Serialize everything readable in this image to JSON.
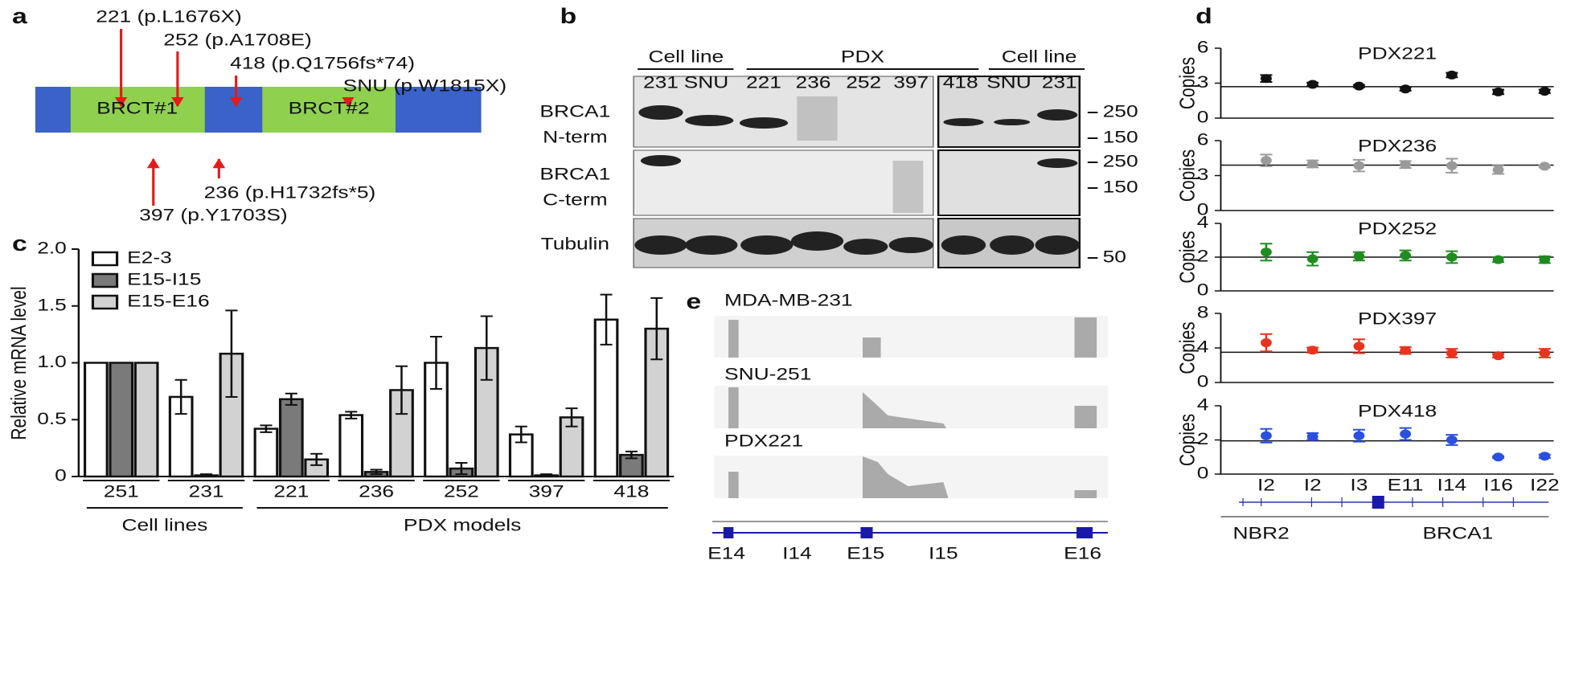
{
  "panel_labels": [
    "a",
    "b",
    "c",
    "d",
    "e"
  ],
  "panel_a": {
    "domains": [
      "BRCT#1",
      "BRCT#2"
    ],
    "mutations_above": [
      "221 (p.L1676X)",
      "252 (p.A1708E)",
      "418 (p.Q1756fs*74)",
      "SNU (p.W1815X)"
    ],
    "mutations_below": [
      "236 (p.H1732fs*5)",
      "397 (p.Y1703S)"
    ]
  },
  "panel_b": {
    "groups": [
      "Cell line",
      "PDX",
      "Cell line"
    ],
    "lanes": [
      "231",
      "SNU",
      "221",
      "236",
      "252",
      "397",
      "418",
      "SNU",
      "231"
    ],
    "rows": [
      [
        "BRCA1",
        "N-term"
      ],
      [
        "BRCA1",
        "C-term"
      ],
      [
        "Tubulin"
      ]
    ],
    "markers": [
      250,
      150,
      250,
      150,
      50
    ]
  },
  "panel_e": {
    "tracks": [
      "MDA-MB-231",
      "SNU-251",
      "PDX221"
    ],
    "exons": [
      "E14",
      "I14",
      "E15",
      "I15",
      "E16"
    ]
  },
  "chart_data": [
    {
      "type": "bar",
      "ylabel": "Relative mRNA level",
      "categories": [
        "251",
        "231",
        "221",
        "236",
        "252",
        "397",
        "418"
      ],
      "group_labels": [
        "Cell lines",
        "PDX models"
      ],
      "legend": "upper left",
      "ylim": [
        0,
        2
      ],
      "yticks": [
        0,
        0.5,
        {
          "value": 1,
          "label": "1.0"
        },
        1.5,
        {
          "value": 2,
          "label": "2.0"
        }
      ],
      "series": [
        {
          "name": "E2-3",
          "color": "#ffffff",
          "values": [
            1.0,
            0.7,
            0.42,
            0.54,
            1.0,
            0.37,
            1.38
          ],
          "errors": [
            0,
            0.15,
            0.03,
            0.03,
            0.23,
            0.07,
            0.22
          ]
        },
        {
          "name": "E15-I15",
          "color": "#7a7a7a",
          "values": [
            1.0,
            0.01,
            0.68,
            0.04,
            0.07,
            0.01,
            0.19
          ],
          "errors": [
            0,
            0.01,
            0.05,
            0.02,
            0.05,
            0.01,
            0.03
          ]
        },
        {
          "name": "E15-E16",
          "color": "#d2d2d2",
          "values": [
            1.0,
            1.08,
            0.15,
            0.76,
            1.13,
            0.52,
            1.3
          ],
          "errors": [
            0,
            0.38,
            0.05,
            0.21,
            0.28,
            0.08,
            0.27
          ]
        }
      ]
    },
    {
      "type": "errorbar",
      "title": "PDX221",
      "ylabel": "Copies",
      "color": "#111111",
      "values": [
        3.4,
        2.9,
        2.75,
        2.5,
        3.7,
        2.25,
        2.3
      ],
      "errors": [
        0.3,
        0.15,
        0.1,
        0.15,
        0.2,
        0.2,
        0.15
      ],
      "reference": 2.7,
      "ylim": [
        0,
        6
      ],
      "yticks": [
        0,
        3,
        6
      ]
    },
    {
      "type": "errorbar",
      "title": "PDX236",
      "ylabel": "Copies",
      "color": "#9a9a9a",
      "values": [
        4.3,
        4.0,
        3.85,
        3.95,
        3.85,
        3.5,
        3.8
      ],
      "errors": [
        0.5,
        0.3,
        0.5,
        0.3,
        0.6,
        0.35,
        0.1
      ],
      "reference": 3.9,
      "ylim": [
        0,
        6
      ],
      "yticks": [
        0,
        3,
        6
      ]
    },
    {
      "type": "errorbar",
      "title": "PDX252",
      "ylabel": "Copies",
      "color": "#1f8c1f",
      "values": [
        2.3,
        1.9,
        2.05,
        2.1,
        2.0,
        1.85,
        1.85
      ],
      "errors": [
        0.5,
        0.4,
        0.25,
        0.3,
        0.35,
        0.15,
        0.2
      ],
      "reference": 2.0,
      "ylim": [
        0,
        4
      ],
      "yticks": [
        0,
        2,
        4
      ]
    },
    {
      "type": "errorbar",
      "title": "PDX397",
      "ylabel": "Copies",
      "color": "#e8341e",
      "values": [
        4.6,
        3.75,
        4.2,
        3.7,
        3.4,
        3.1,
        3.4
      ],
      "errors": [
        1.0,
        0.3,
        0.8,
        0.4,
        0.5,
        0.2,
        0.5
      ],
      "reference": 3.5,
      "ylim": [
        0,
        8
      ],
      "yticks": [
        0,
        4,
        8
      ]
    },
    {
      "type": "errorbar",
      "title": "PDX418",
      "ylabel": "Copies",
      "color": "#2a50e0",
      "values": [
        2.25,
        2.2,
        2.25,
        2.35,
        2.0,
        1.0,
        1.05
      ],
      "errors": [
        0.4,
        0.2,
        0.35,
        0.35,
        0.3,
        0.05,
        0.1
      ],
      "reference": 1.95,
      "ylim": [
        0,
        4
      ],
      "yticks": [
        0,
        2,
        4
      ],
      "categories": [
        "I2",
        "I2",
        "I3",
        "E11",
        "I14",
        "I16",
        "I22"
      ],
      "gene_labels": [
        "NBR2",
        "BRCA1"
      ]
    }
  ]
}
